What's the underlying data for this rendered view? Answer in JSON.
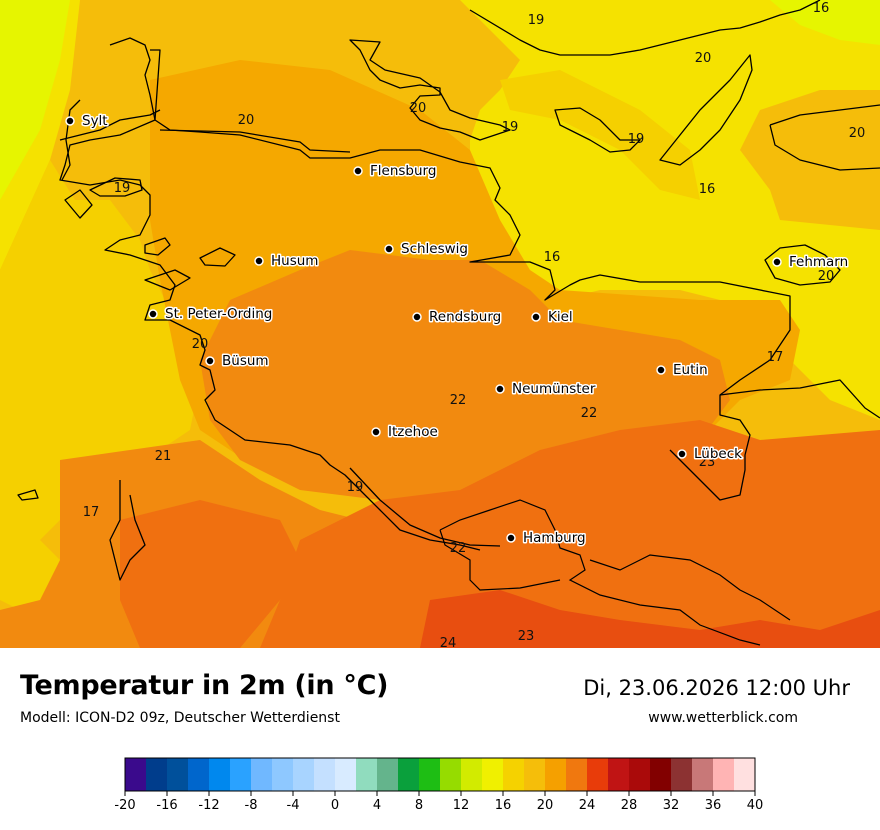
{
  "map": {
    "cities": [
      {
        "name": "Sylt"
      },
      {
        "name": "Flensburg"
      },
      {
        "name": "Schleswig"
      },
      {
        "name": "Husum"
      },
      {
        "name": "St. Peter-Ording"
      },
      {
        "name": "Büsum"
      },
      {
        "name": "Rendsburg"
      },
      {
        "name": "Kiel"
      },
      {
        "name": "Fehmarn"
      },
      {
        "name": "Eutin"
      },
      {
        "name": "Neumünster"
      },
      {
        "name": "Itzehoe"
      },
      {
        "name": "Lübeck"
      },
      {
        "name": "Hamburg"
      }
    ],
    "isotherm_labels": [
      "19",
      "16",
      "20",
      "20",
      "19",
      "20",
      "19",
      "19",
      "16",
      "20",
      "16",
      "20",
      "20",
      "17",
      "22",
      "22",
      "23",
      "21",
      "19",
      "17",
      "22",
      "23",
      "24"
    ],
    "colors": {
      "t16": "#f5e200",
      "t17": "#f5d000",
      "t18": "#f5bd0a",
      "t20": "#f5a800",
      "t21": "#f28a0f",
      "t22": "#f07010",
      "t23": "#e84e10",
      "t12": "#e6f500"
    }
  },
  "footer": {
    "title": "Temperatur in 2m (in °C)",
    "subtitle": "Modell: ICON-D2 09z, Deutscher Wetterdienst",
    "datetime": "Di, 23.06.2026 12:00 Uhr",
    "website": "www.wetterblick.com"
  },
  "legend": {
    "unit": "°C",
    "tick_labels": [
      "-20",
      "-16",
      "-12",
      "-8",
      "-4",
      "0",
      "4",
      "8",
      "12",
      "16",
      "20",
      "24",
      "28",
      "32",
      "36",
      "40"
    ],
    "colors": [
      "#3a0a8c",
      "#003d8c",
      "#00509b",
      "#0066cc",
      "#0088ee",
      "#2aa2ff",
      "#70b8ff",
      "#8ec8ff",
      "#a8d4ff",
      "#c4e0ff",
      "#d8ebff",
      "#90dcbe",
      "#64b48c",
      "#0aa03c",
      "#1ebe14",
      "#96dc00",
      "#d2eb00",
      "#f0f000",
      "#f5d200",
      "#f5be0a",
      "#f5a000",
      "#f0780f",
      "#e83c0a",
      "#c01414",
      "#aa0a0a",
      "#820000",
      "#8c3232",
      "#c87878",
      "#ffb4b4",
      "#ffe0e0"
    ]
  }
}
